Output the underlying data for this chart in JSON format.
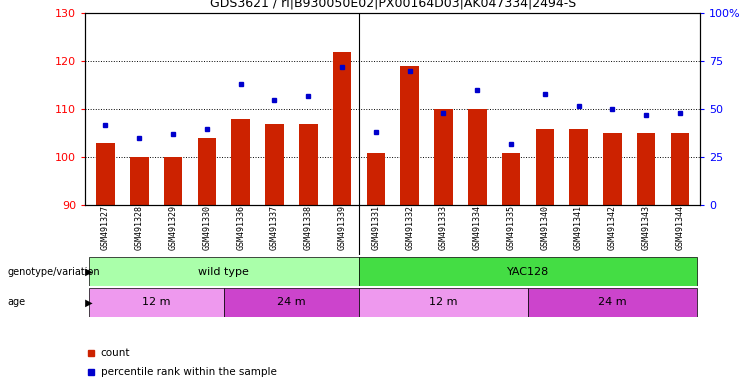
{
  "title": "GDS3621 / ri|B930050E02|PX00164D03|AK047334|2494-S",
  "samples": [
    "GSM491327",
    "GSM491328",
    "GSM491329",
    "GSM491330",
    "GSM491336",
    "GSM491337",
    "GSM491338",
    "GSM491339",
    "GSM491331",
    "GSM491332",
    "GSM491333",
    "GSM491334",
    "GSM491335",
    "GSM491340",
    "GSM491341",
    "GSM491342",
    "GSM491343",
    "GSM491344"
  ],
  "counts": [
    103,
    100,
    100,
    104,
    108,
    107,
    107,
    122,
    101,
    119,
    110,
    110,
    101,
    106,
    106,
    105,
    105,
    105
  ],
  "percentiles": [
    42,
    35,
    37,
    40,
    63,
    55,
    57,
    72,
    38,
    70,
    48,
    60,
    32,
    58,
    52,
    50,
    47,
    48
  ],
  "ylim_left": [
    90,
    130
  ],
  "ylim_right": [
    0,
    100
  ],
  "yticks_left": [
    90,
    100,
    110,
    120,
    130
  ],
  "yticks_right": [
    0,
    25,
    50,
    75,
    100
  ],
  "bar_color": "#cc2200",
  "dot_color": "#0000cc",
  "background_color": "#ffffff",
  "genotype_groups": [
    {
      "label": "wild type",
      "start": 0,
      "end": 8,
      "color": "#aaffaa"
    },
    {
      "label": "YAC128",
      "start": 8,
      "end": 18,
      "color": "#44dd44"
    }
  ],
  "age_groups": [
    {
      "label": "12 m",
      "start": 0,
      "end": 4,
      "color": "#ee99ee"
    },
    {
      "label": "24 m",
      "start": 4,
      "end": 8,
      "color": "#cc44cc"
    },
    {
      "label": "12 m",
      "start": 8,
      "end": 13,
      "color": "#ee99ee"
    },
    {
      "label": "24 m",
      "start": 13,
      "end": 18,
      "color": "#cc44cc"
    }
  ],
  "legend_count_color": "#cc2200",
  "legend_dot_color": "#0000cc",
  "n_samples": 18
}
